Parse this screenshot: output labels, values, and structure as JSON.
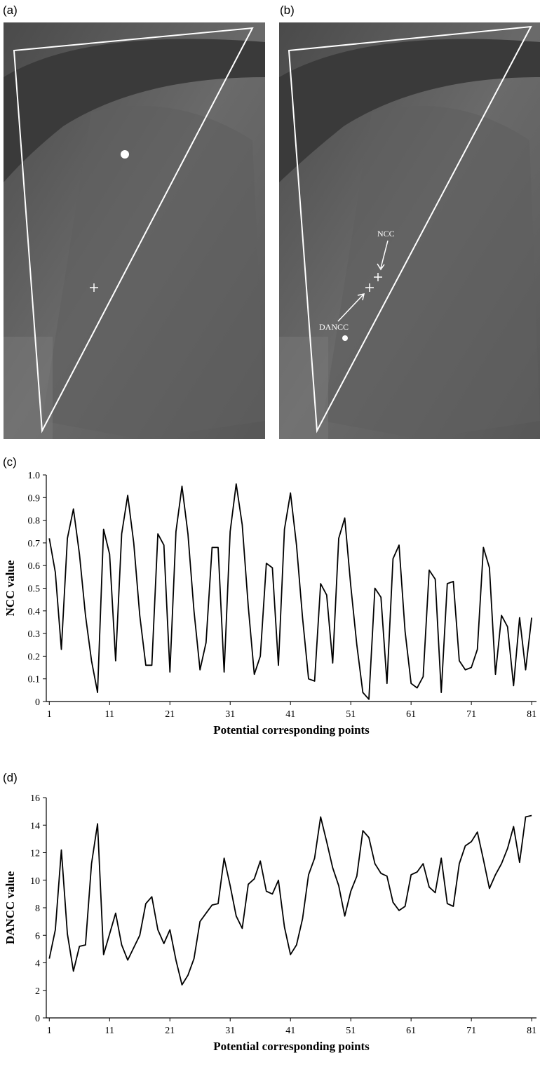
{
  "images": [
    {
      "label": "(a)"
    },
    {
      "label": "(b)",
      "annotations": [
        "NCC",
        "DANCC"
      ]
    }
  ],
  "chart_data": [
    {
      "type": "line",
      "label": "(c)",
      "xlabel": "Potential corresponding points",
      "ylabel": "NCC value",
      "color": "#000000",
      "x": [
        1,
        2,
        3,
        4,
        5,
        6,
        7,
        8,
        9,
        10,
        11,
        12,
        13,
        14,
        15,
        16,
        17,
        18,
        19,
        20,
        21,
        22,
        23,
        24,
        25,
        26,
        27,
        28,
        29,
        30,
        31,
        32,
        33,
        34,
        35,
        36,
        37,
        38,
        39,
        40,
        41,
        42,
        43,
        44,
        45,
        46,
        47,
        48,
        49,
        50,
        51,
        52,
        53,
        54,
        55,
        56,
        57,
        58,
        59,
        60,
        61,
        62,
        63,
        64,
        65,
        66,
        67,
        68,
        69,
        70,
        71,
        72,
        73,
        74,
        75,
        76,
        77,
        78,
        79,
        80,
        81
      ],
      "values": [
        0.72,
        0.57,
        0.23,
        0.72,
        0.85,
        0.65,
        0.38,
        0.18,
        0.04,
        0.76,
        0.65,
        0.18,
        0.74,
        0.91,
        0.7,
        0.38,
        0.16,
        0.16,
        0.74,
        0.69,
        0.13,
        0.75,
        0.95,
        0.74,
        0.4,
        0.14,
        0.26,
        0.68,
        0.68,
        0.13,
        0.75,
        0.96,
        0.78,
        0.42,
        0.12,
        0.2,
        0.61,
        0.59,
        0.16,
        0.76,
        0.92,
        0.69,
        0.37,
        0.1,
        0.09,
        0.52,
        0.47,
        0.17,
        0.72,
        0.81,
        0.51,
        0.25,
        0.04,
        0.01,
        0.5,
        0.46,
        0.08,
        0.63,
        0.69,
        0.31,
        0.08,
        0.06,
        0.11,
        0.58,
        0.54,
        0.04,
        0.52,
        0.53,
        0.18,
        0.14,
        0.15,
        0.23,
        0.68,
        0.59,
        0.12,
        0.38,
        0.33,
        0.07,
        0.37,
        0.14,
        0.37
      ],
      "xlim": [
        0.5,
        81.8
      ],
      "xticks": [
        1,
        11,
        21,
        31,
        41,
        51,
        61,
        71,
        81
      ],
      "ylim": [
        0,
        1
      ],
      "yticks": [
        0,
        0.1,
        0.2,
        0.3,
        0.4,
        0.5,
        0.6,
        0.7,
        0.8,
        0.9,
        {
          "value": 1,
          "label": "1.0"
        }
      ]
    },
    {
      "type": "line",
      "label": "(d)",
      "xlabel": "Potential corresponding points",
      "ylabel": "DANCC value",
      "color": "#000000",
      "x": [
        1,
        2,
        3,
        4,
        5,
        6,
        7,
        8,
        9,
        10,
        11,
        12,
        13,
        14,
        15,
        16,
        17,
        18,
        19,
        20,
        21,
        22,
        23,
        24,
        25,
        26,
        27,
        28,
        29,
        30,
        31,
        32,
        33,
        34,
        35,
        36,
        37,
        38,
        39,
        40,
        41,
        42,
        43,
        44,
        45,
        46,
        47,
        48,
        49,
        50,
        51,
        52,
        53,
        54,
        55,
        56,
        57,
        58,
        59,
        60,
        61,
        62,
        63,
        64,
        65,
        66,
        67,
        68,
        69,
        70,
        71,
        72,
        73,
        74,
        75,
        76,
        77,
        78,
        79,
        80,
        81
      ],
      "values": [
        4.3,
        6.4,
        12.2,
        6.1,
        3.4,
        5.2,
        5.3,
        11.2,
        14.1,
        4.6,
        6.1,
        7.6,
        5.3,
        4.2,
        5.1,
        6.0,
        8.3,
        8.8,
        6.4,
        5.4,
        6.4,
        4.2,
        2.4,
        3.1,
        4.3,
        7.0,
        7.6,
        8.2,
        8.3,
        11.6,
        9.6,
        7.4,
        6.5,
        9.7,
        10.1,
        11.4,
        9.2,
        9.0,
        10.0,
        6.6,
        4.6,
        5.3,
        7.2,
        10.4,
        11.6,
        14.6,
        12.8,
        10.9,
        9.6,
        7.4,
        9.2,
        10.3,
        13.6,
        13.1,
        11.2,
        10.5,
        10.3,
        8.4,
        7.8,
        8.1,
        10.4,
        10.6,
        11.2,
        9.5,
        9.1,
        11.6,
        8.3,
        8.1,
        11.2,
        12.5,
        12.8,
        13.5,
        11.5,
        9.4,
        10.4,
        11.2,
        12.3,
        13.9,
        11.3,
        14.6,
        14.7
      ],
      "xlim": [
        0.5,
        81.8
      ],
      "xticks": [
        1,
        11,
        21,
        31,
        41,
        51,
        61,
        71,
        81
      ],
      "ylim": [
        0,
        16
      ],
      "yticks": [
        0,
        2,
        4,
        6,
        8,
        10,
        12,
        14,
        16
      ]
    }
  ]
}
